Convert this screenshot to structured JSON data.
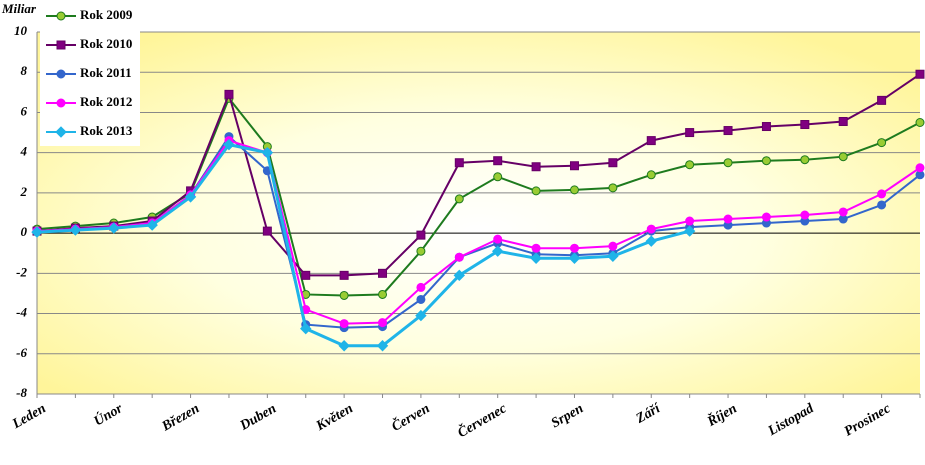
{
  "chart_data": {
    "type": "line",
    "y_label": "Miliar",
    "categories": [
      "Leden",
      null,
      "Únor",
      null,
      "Březen",
      null,
      "Duben",
      null,
      "Květen",
      null,
      "Červen",
      null,
      "Červenec",
      null,
      "Srpen",
      null,
      "Září",
      null,
      "Říjen",
      null,
      "Listopad",
      null,
      "Prosinec",
      null
    ],
    "ylim": [
      -8,
      10
    ],
    "yticks": [
      -8,
      -6,
      -4,
      -2,
      0,
      2,
      4,
      6,
      8,
      10
    ],
    "grid": true,
    "legend": "top-left",
    "series": [
      {
        "name": "Rok 2009",
        "color": "#1e7b1e",
        "marker": "circle",
        "marker_fill": "#99cc33",
        "values": [
          0.2,
          0.35,
          0.5,
          0.8,
          2.0,
          6.7,
          4.3,
          -3.05,
          -3.1,
          -3.05,
          -0.9,
          1.7,
          2.8,
          2.1,
          2.15,
          2.25,
          2.9,
          3.4,
          3.5,
          3.6,
          3.65,
          3.8,
          4.5,
          5.5
        ]
      },
      {
        "name": "Rok 2010",
        "color": "#660066",
        "marker": "square",
        "marker_fill": "#800080",
        "values": [
          0.1,
          0.25,
          0.35,
          0.6,
          2.1,
          6.9,
          0.1,
          -2.1,
          -2.1,
          -2.0,
          -0.1,
          3.5,
          3.6,
          3.3,
          3.35,
          3.5,
          4.6,
          5.0,
          5.1,
          5.3,
          5.4,
          5.55,
          6.6,
          7.9
        ]
      },
      {
        "name": "Rok 2011",
        "color": "#3366cc",
        "marker": "circle",
        "marker_fill": "#3366cc",
        "values": [
          0.1,
          0.2,
          0.3,
          0.5,
          1.9,
          4.8,
          3.1,
          -4.55,
          -4.7,
          -4.65,
          -3.3,
          -1.2,
          -0.5,
          -1.05,
          -1.1,
          -1.0,
          0.1,
          0.3,
          0.4,
          0.5,
          0.6,
          0.7,
          1.4,
          2.9
        ]
      },
      {
        "name": "Rok 2012",
        "color": "#ff00ff",
        "marker": "circle",
        "marker_fill": "#ff00ff",
        "values": [
          0.1,
          0.2,
          0.3,
          0.5,
          1.9,
          4.6,
          4.0,
          -3.8,
          -4.5,
          -4.45,
          -2.7,
          -1.2,
          -0.3,
          -0.75,
          -0.75,
          -0.65,
          0.2,
          0.6,
          0.7,
          0.8,
          0.9,
          1.05,
          1.95,
          3.25
        ]
      },
      {
        "name": "Rok 2013",
        "color": "#1fb4e8",
        "marker": "diamond",
        "marker_fill": "#1fb4e8",
        "values": [
          0.05,
          0.15,
          0.25,
          0.4,
          1.8,
          4.4,
          4.0,
          -4.75,
          -5.6,
          -5.6,
          -4.1,
          -2.1,
          -0.9,
          -1.25,
          -1.25,
          -1.15,
          -0.4,
          0.1,
          null,
          null,
          null,
          null,
          null,
          null
        ]
      }
    ]
  }
}
